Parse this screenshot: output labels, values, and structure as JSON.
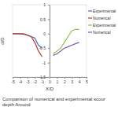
{
  "chart_data": {
    "type": "line",
    "title": "Comparison of numerical and experimental scour depth Around",
    "x_label": "X/D",
    "y_label": "d/D",
    "xlim": [
      -5,
      5
    ],
    "xticks": [
      -5,
      -4,
      -3,
      -2,
      -1,
      0,
      1,
      2,
      3,
      4,
      5
    ],
    "ylim": [
      -1.5,
      1
    ],
    "yticks": [
      -1.5,
      -1,
      -0.5,
      0,
      0.5,
      1
    ],
    "grid": false,
    "legend": "right",
    "series": [
      {
        "name": "Experimental",
        "color": "#4472c4",
        "x": [
          -5,
          -4.5,
          -4,
          -3.5,
          -3,
          -2.5,
          -2,
          -1.5,
          -1
        ],
        "values": [
          0,
          0,
          0,
          0,
          -0.05,
          -0.1,
          -0.15,
          -0.4,
          -0.5
        ]
      },
      {
        "name": "Numerical",
        "color": "#c0392b",
        "x": [
          -5,
          -4.5,
          -4,
          -3.5,
          -3,
          -2.5,
          -2,
          -1.5,
          -1
        ],
        "values": [
          0,
          0,
          0,
          -0.02,
          -0.05,
          -0.1,
          -0.3,
          -0.6,
          -0.8
        ]
      },
      {
        "name": "Experimental",
        "color": "#8dc63f",
        "x": [
          0.5,
          1,
          1.5,
          2,
          2.5,
          3,
          3.5,
          4
        ],
        "values": [
          -0.7,
          -0.6,
          -0.5,
          -0.3,
          -0.1,
          0.1,
          0.15,
          0.15
        ]
      },
      {
        "name": "Numerical",
        "color": "#7d5ba6",
        "x": [
          0.5,
          1,
          1.5,
          2,
          2.5,
          3,
          3.5,
          4
        ],
        "values": [
          -0.75,
          -0.7,
          -0.6,
          -0.5,
          -0.45,
          -0.4,
          -0.35,
          -0.3
        ]
      }
    ]
  }
}
